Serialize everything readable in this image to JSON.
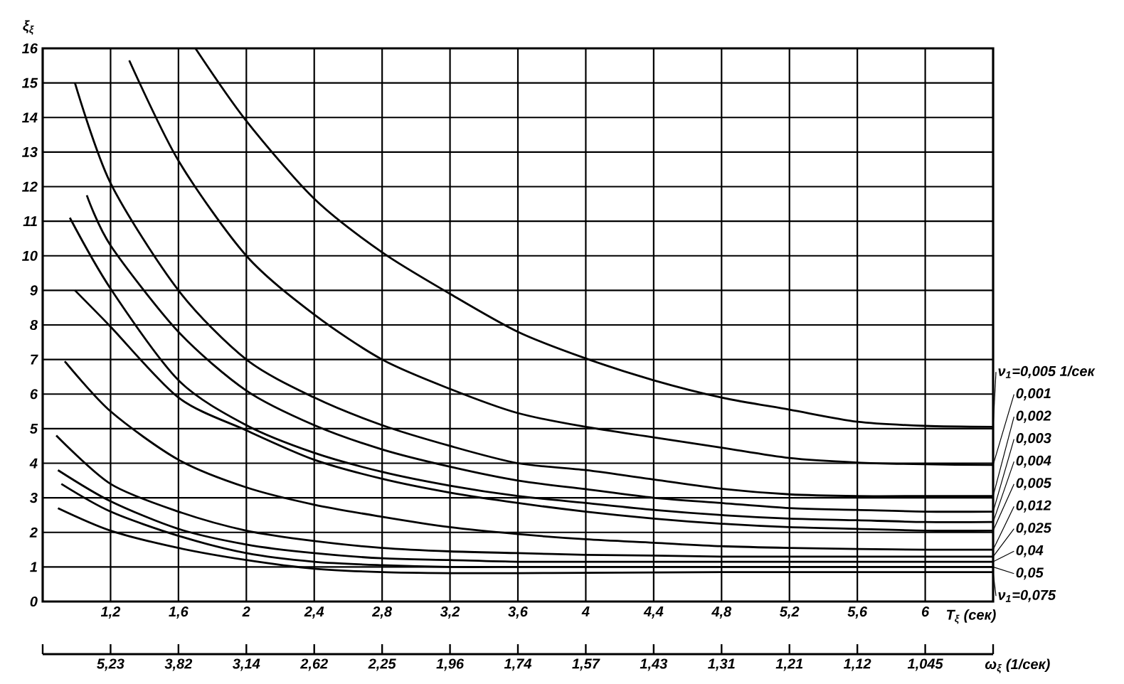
{
  "chart_data": {
    "type": "line",
    "xlabel": "T$_{ξ}$ (сек)",
    "ylabel": "ξ$_{ξ}$",
    "x2label": "ω$_{ξ}$ (1/сек)",
    "xlim": [
      0.8,
      6.4
    ],
    "ylim": [
      0,
      16
    ],
    "xticks": [
      {
        "value": 1.2,
        "label": "1,2"
      },
      {
        "value": 1.6,
        "label": "1,6"
      },
      2,
      {
        "value": 2.4,
        "label": "2,4"
      },
      {
        "value": 2.8,
        "label": "2,8"
      },
      {
        "value": 3.2,
        "label": "3,2"
      },
      {
        "value": 3.6,
        "label": "3,6"
      },
      4,
      {
        "value": 4.4,
        "label": "4,4"
      },
      {
        "value": 4.8,
        "label": "4,8"
      },
      {
        "value": 5.2,
        "label": "5,2"
      },
      {
        "value": 5.6,
        "label": "5,6"
      },
      6
    ],
    "yticks": [
      0,
      1,
      2,
      3,
      4,
      5,
      6,
      7,
      8,
      9,
      10,
      11,
      12,
      13,
      14,
      15,
      16
    ],
    "annotations": [
      "5,23",
      "3,82",
      "3,14",
      "2,62",
      "2,25",
      "1,96",
      "1,74",
      "1,57",
      "1,43",
      "1,31",
      "1,21",
      "1,12",
      "1,045"
    ],
    "grid": true,
    "legend": "right",
    "series": [
      {
        "name": "ν$_{1}$=0,005 1/сек",
        "color": "#000000",
        "x": [
          1.7,
          2.0,
          2.4,
          2.8,
          3.2,
          3.6,
          4.0,
          4.4,
          4.8,
          5.2,
          5.6,
          6.0,
          6.4
        ],
        "values": [
          16,
          13.9,
          11.65,
          10.1,
          8.9,
          7.8,
          7.03,
          6.4,
          5.9,
          5.55,
          5.2,
          5.08,
          5.05
        ]
      },
      {
        "name": "0,001",
        "color": "#000000",
        "x": [
          1.31,
          1.6,
          2.0,
          2.4,
          2.8,
          3.2,
          3.6,
          4.0,
          4.4,
          4.8,
          5.2,
          5.6,
          6.0,
          6.4
        ],
        "values": [
          15.65,
          12.75,
          10.0,
          8.3,
          7.0,
          6.15,
          5.45,
          5.05,
          4.75,
          4.45,
          4.15,
          4.02,
          3.97,
          3.95
        ]
      },
      {
        "name": "0,002",
        "color": "#000000",
        "x": [
          0.99,
          1.2,
          1.6,
          2.0,
          2.4,
          2.8,
          3.2,
          3.6,
          4.0,
          4.4,
          4.8,
          5.2,
          5.6,
          6.0,
          6.4
        ],
        "values": [
          15.0,
          12.1,
          9.0,
          7.0,
          5.9,
          5.1,
          4.5,
          4.0,
          3.8,
          3.53,
          3.26,
          3.1,
          3.05,
          3.05,
          3.05
        ]
      },
      {
        "name": "0,003",
        "color": "#000000",
        "x": [
          1.06,
          1.2,
          1.6,
          2.0,
          2.4,
          2.8,
          3.2,
          3.6,
          4.0,
          4.4,
          4.8,
          5.2,
          5.6,
          6.0,
          6.4
        ],
        "values": [
          11.75,
          10.3,
          7.8,
          6.1,
          5.1,
          4.4,
          3.9,
          3.5,
          3.25,
          3.0,
          2.85,
          2.7,
          2.65,
          2.6,
          2.6
        ]
      },
      {
        "name": "0,004",
        "color": "#000000",
        "x": [
          0.96,
          1.2,
          1.6,
          2.0,
          2.4,
          2.8,
          3.2,
          3.6,
          4.0,
          4.4,
          4.8,
          5.2,
          5.6,
          6.0,
          6.4
        ],
        "values": [
          11.1,
          9.05,
          6.4,
          5.1,
          4.3,
          3.75,
          3.35,
          3.05,
          2.85,
          2.65,
          2.5,
          2.4,
          2.35,
          2.3,
          2.3
        ]
      },
      {
        "name": "0,005",
        "color": "#000000",
        "x": [
          0.99,
          1.2,
          1.6,
          2.0,
          2.4,
          2.8,
          3.2,
          3.6,
          4.0,
          4.4,
          4.8,
          5.2,
          5.6,
          6.0,
          6.4
        ],
        "values": [
          9.0,
          7.95,
          5.9,
          4.95,
          4.1,
          3.55,
          3.15,
          2.85,
          2.6,
          2.4,
          2.25,
          2.15,
          2.1,
          2.05,
          2.05
        ]
      },
      {
        "name": "0,012",
        "color": "#000000",
        "x": [
          0.93,
          1.2,
          1.6,
          2.0,
          2.4,
          2.8,
          3.2,
          3.6,
          4.0,
          4.4,
          4.8,
          5.2,
          5.6,
          6.0,
          6.4
        ],
        "values": [
          6.95,
          5.5,
          4.1,
          3.3,
          2.8,
          2.45,
          2.15,
          1.95,
          1.8,
          1.7,
          1.6,
          1.55,
          1.52,
          1.5,
          1.5
        ]
      },
      {
        "name": "0,025",
        "color": "#000000",
        "x": [
          0.88,
          1.2,
          1.6,
          2.0,
          2.4,
          2.8,
          3.2,
          3.6,
          4.0,
          4.4,
          4.8,
          5.2,
          5.6,
          6.0,
          6.4
        ],
        "values": [
          4.8,
          3.4,
          2.6,
          2.05,
          1.75,
          1.55,
          1.45,
          1.4,
          1.35,
          1.33,
          1.3,
          1.3,
          1.3,
          1.3,
          1.3
        ]
      },
      {
        "name": "0,04",
        "color": "#000000",
        "x": [
          0.89,
          1.2,
          1.6,
          2.0,
          2.4,
          2.8,
          3.2,
          3.6,
          4.0,
          4.4,
          4.8,
          5.2,
          5.6,
          6.0,
          6.4
        ],
        "values": [
          3.8,
          2.9,
          2.1,
          1.65,
          1.4,
          1.25,
          1.2,
          1.15,
          1.15,
          1.15,
          1.15,
          1.15,
          1.15,
          1.15,
          1.15
        ]
      },
      {
        "name": "0,05",
        "color": "#000000",
        "x": [
          0.91,
          1.2,
          1.6,
          2.0,
          2.4,
          2.8,
          3.2,
          3.6,
          4.0,
          4.4,
          4.8,
          5.2,
          5.6,
          6.0,
          6.4
        ],
        "values": [
          3.4,
          2.6,
          1.9,
          1.4,
          1.15,
          1.05,
          1.0,
          1.0,
          1.0,
          1.0,
          1.0,
          1.0,
          1.0,
          1.0,
          1.0
        ]
      },
      {
        "name": "ν$_{1}$=0,075",
        "color": "#000000",
        "x": [
          0.89,
          1.2,
          1.6,
          2.0,
          2.4,
          2.8,
          3.2,
          3.6,
          4.0,
          4.4,
          4.8,
          5.2,
          5.6,
          6.0,
          6.4
        ],
        "values": [
          2.7,
          2.05,
          1.55,
          1.2,
          0.95,
          0.85,
          0.82,
          0.82,
          0.83,
          0.84,
          0.85,
          0.85,
          0.85,
          0.85,
          0.85
        ]
      }
    ]
  }
}
